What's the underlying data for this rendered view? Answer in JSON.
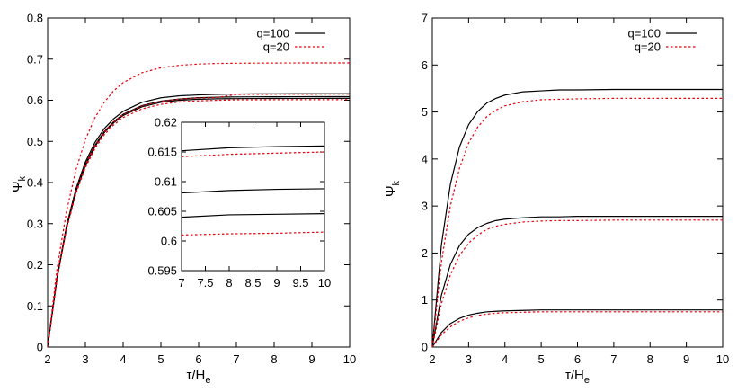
{
  "chart_data": [
    {
      "type": "line",
      "panel": "left",
      "title": "",
      "xlabel": "τ/H",
      "xlabel_sub": "e",
      "ylabel": "Ψ",
      "ylabel_sub": "k",
      "xlim": [
        2,
        10
      ],
      "ylim": [
        0,
        0.8
      ],
      "xticks": [
        2,
        3,
        4,
        5,
        6,
        7,
        8,
        9,
        10
      ],
      "yticks": [
        0,
        0.1,
        0.2,
        0.3,
        0.4,
        0.5,
        0.6,
        0.7,
        0.8
      ],
      "legend_position": "top-right",
      "legend": [
        {
          "label": "q=100",
          "color": "#000000",
          "dash": "solid"
        },
        {
          "label": "q=20",
          "color": "#e8000b",
          "dash": "dotted"
        }
      ],
      "series": [
        {
          "legend": "q=100",
          "color": "#000000",
          "dash": "solid",
          "x0": 2,
          "rate": 1.3,
          "x": [
            2.0,
            2.25,
            2.5,
            2.75,
            3.0,
            3.25,
            3.5,
            3.75,
            4.0,
            4.5,
            5.0,
            5.5,
            6.0,
            6.5,
            7.0,
            7.5,
            8.0,
            8.5,
            9.0,
            9.5,
            10.0
          ],
          "y": [
            0.0,
            0.171,
            0.295,
            0.385,
            0.45,
            0.497,
            0.531,
            0.555,
            0.573,
            0.595,
            0.606,
            0.611,
            0.613,
            0.6145,
            0.6152,
            0.6155,
            0.6157,
            0.6158,
            0.6159,
            0.616,
            0.616
          ]
        },
        {
          "color": "#000000",
          "dash": "solid",
          "x0": 2,
          "rate": 1.3,
          "x": [
            2.0,
            2.25,
            2.5,
            2.75,
            3.0,
            3.25,
            3.5,
            3.75,
            4.0,
            4.5,
            5.0,
            5.5,
            6.0,
            6.5,
            7.0,
            7.5,
            8.0,
            8.5,
            9.0,
            9.5,
            10.0
          ],
          "y": [
            0.0,
            0.168,
            0.291,
            0.38,
            0.444,
            0.49,
            0.524,
            0.548,
            0.566,
            0.587,
            0.598,
            0.603,
            0.6062,
            0.6075,
            0.6081,
            0.6083,
            0.6085,
            0.6086,
            0.6087,
            0.6088,
            0.6088
          ]
        },
        {
          "color": "#000000",
          "dash": "solid",
          "x0": 2,
          "rate": 1.3,
          "x": [
            2.0,
            2.25,
            2.5,
            2.75,
            3.0,
            3.25,
            3.5,
            3.75,
            4.0,
            4.5,
            5.0,
            5.5,
            6.0,
            6.5,
            7.0,
            7.5,
            8.0,
            8.5,
            9.0,
            9.5,
            10.0
          ],
          "y": [
            0.0,
            0.167,
            0.289,
            0.377,
            0.441,
            0.487,
            0.521,
            0.545,
            0.563,
            0.584,
            0.595,
            0.6,
            0.6025,
            0.6035,
            0.604,
            0.6042,
            0.6044,
            0.6045,
            0.6045,
            0.6046,
            0.6046
          ]
        },
        {
          "legend": "q=20",
          "color": "#e8000b",
          "dash": "dotted",
          "x0": 2,
          "rate": 1.3,
          "x": [
            2.0,
            2.25,
            2.5,
            2.75,
            3.0,
            3.25,
            3.5,
            3.75,
            4.0,
            4.5,
            5.0,
            5.5,
            6.0,
            6.5,
            7.0,
            7.5,
            8.0,
            8.5,
            9.0,
            9.5,
            10.0
          ],
          "y": [
            0.0,
            0.191,
            0.33,
            0.431,
            0.504,
            0.557,
            0.595,
            0.623,
            0.643,
            0.667,
            0.679,
            0.685,
            0.688,
            0.6895,
            0.69,
            0.6903,
            0.6905,
            0.6906,
            0.6907,
            0.6907,
            0.6907
          ]
        },
        {
          "color": "#e8000b",
          "dash": "dotted",
          "x0": 2,
          "rate": 1.3,
          "x": [
            2.0,
            2.25,
            2.5,
            2.75,
            3.0,
            3.25,
            3.5,
            3.75,
            4.0,
            4.5,
            5.0,
            5.5,
            6.0,
            6.5,
            7.0,
            7.5,
            8.0,
            8.5,
            9.0,
            9.5,
            10.0
          ],
          "y": [
            0.0,
            0.168,
            0.29,
            0.379,
            0.443,
            0.489,
            0.523,
            0.547,
            0.565,
            0.586,
            0.597,
            0.603,
            0.6055,
            0.607,
            0.6142,
            0.6144,
            0.6146,
            0.6147,
            0.6148,
            0.6149,
            0.615
          ]
        },
        {
          "color": "#e8000b",
          "dash": "dotted",
          "x0": 2,
          "rate": 1.3,
          "x": [
            2.0,
            2.25,
            2.5,
            2.75,
            3.0,
            3.25,
            3.5,
            3.75,
            4.0,
            4.5,
            5.0,
            5.5,
            6.0,
            6.5,
            7.0,
            7.5,
            8.0,
            8.5,
            9.0,
            9.5,
            10.0
          ],
          "y": [
            0.0,
            0.166,
            0.286,
            0.373,
            0.436,
            0.482,
            0.516,
            0.54,
            0.558,
            0.579,
            0.59,
            0.596,
            0.5985,
            0.5998,
            0.601,
            0.6011,
            0.6012,
            0.6013,
            0.6013,
            0.6014,
            0.6015
          ]
        }
      ],
      "inset": {
        "xlim": [
          7,
          10
        ],
        "ylim": [
          0.595,
          0.62
        ],
        "xticks": [
          7,
          7.5,
          8,
          8.5,
          9,
          9.5,
          10
        ],
        "yticks": [
          0.595,
          0.6,
          0.605,
          0.61,
          0.615,
          0.62
        ],
        "series": [
          {
            "color": "#000000",
            "dash": "solid",
            "x": [
              7,
              8,
              9,
              10
            ],
            "y": [
              0.6152,
              0.6157,
              0.6159,
              0.616
            ]
          },
          {
            "color": "#000000",
            "dash": "solid",
            "x": [
              7,
              8,
              9,
              10
            ],
            "y": [
              0.6081,
              0.6085,
              0.6087,
              0.6088
            ]
          },
          {
            "color": "#000000",
            "dash": "solid",
            "x": [
              7,
              8,
              9,
              10
            ],
            "y": [
              0.604,
              0.6044,
              0.6045,
              0.6046
            ]
          },
          {
            "color": "#e8000b",
            "dash": "dotted",
            "x": [
              7,
              8,
              9,
              10
            ],
            "y": [
              0.6142,
              0.6146,
              0.6148,
              0.615
            ]
          },
          {
            "color": "#e8000b",
            "dash": "dotted",
            "x": [
              7,
              8,
              9,
              10
            ],
            "y": [
              0.601,
              0.6012,
              0.6013,
              0.6015
            ]
          }
        ]
      }
    },
    {
      "type": "line",
      "panel": "right",
      "title": "",
      "xlabel": "τ/H",
      "xlabel_sub": "e",
      "ylabel": "Ψ",
      "ylabel_sub": "k",
      "xlim": [
        2,
        10
      ],
      "ylim": [
        0,
        7
      ],
      "xticks": [
        2,
        3,
        4,
        5,
        6,
        7,
        8,
        9,
        10
      ],
      "yticks": [
        0,
        1,
        2,
        3,
        4,
        5,
        6,
        7
      ],
      "legend_position": "top-right",
      "legend": [
        {
          "label": "q=100",
          "color": "#000000",
          "dash": "solid"
        },
        {
          "label": "q=20",
          "color": "#e8000b",
          "dash": "dotted"
        }
      ],
      "series": [
        {
          "legend": "q=100",
          "color": "#000000",
          "dash": "solid",
          "x": [
            2.0,
            2.25,
            2.5,
            2.75,
            3.0,
            3.25,
            3.5,
            3.75,
            4.0,
            4.5,
            5.0,
            5.5,
            6.0,
            7.0,
            8.0,
            9.0,
            10.0
          ],
          "y": [
            0.0,
            2.17,
            3.47,
            4.26,
            4.73,
            5.01,
            5.19,
            5.29,
            5.36,
            5.43,
            5.45,
            5.47,
            5.47,
            5.48,
            5.48,
            5.48,
            5.48
          ]
        },
        {
          "legend": "q=20",
          "color": "#e8000b",
          "dash": "dotted",
          "x": [
            2.0,
            2.25,
            2.5,
            2.75,
            3.0,
            3.25,
            3.5,
            3.75,
            4.0,
            4.5,
            5.0,
            5.5,
            6.0,
            7.0,
            8.0,
            9.0,
            10.0
          ],
          "y": [
            0.0,
            1.8,
            3.01,
            3.81,
            4.34,
            4.68,
            4.9,
            5.04,
            5.13,
            5.22,
            5.26,
            5.27,
            5.28,
            5.29,
            5.29,
            5.29,
            5.29
          ]
        },
        {
          "color": "#000000",
          "dash": "solid",
          "x": [
            2.0,
            2.25,
            2.5,
            2.75,
            3.0,
            3.25,
            3.5,
            3.75,
            4.0,
            4.5,
            5.0,
            5.5,
            6.0,
            7.0,
            8.0,
            9.0,
            10.0
          ],
          "y": [
            0.0,
            1.1,
            1.76,
            2.16,
            2.4,
            2.54,
            2.63,
            2.69,
            2.72,
            2.75,
            2.77,
            2.77,
            2.78,
            2.78,
            2.78,
            2.78,
            2.78
          ]
        },
        {
          "color": "#e8000b",
          "dash": "dotted",
          "x": [
            2.0,
            2.25,
            2.5,
            2.75,
            3.0,
            3.25,
            3.5,
            3.75,
            4.0,
            4.5,
            5.0,
            5.5,
            6.0,
            7.0,
            8.0,
            9.0,
            10.0
          ],
          "y": [
            0.0,
            0.92,
            1.54,
            1.95,
            2.21,
            2.38,
            2.5,
            2.57,
            2.61,
            2.66,
            2.68,
            2.69,
            2.69,
            2.7,
            2.7,
            2.7,
            2.7
          ]
        },
        {
          "color": "#000000",
          "dash": "solid",
          "x": [
            2.0,
            2.25,
            2.5,
            2.75,
            3.0,
            3.25,
            3.5,
            3.75,
            4.0,
            4.5,
            5.0,
            5.5,
            6.0,
            7.0,
            8.0,
            9.0,
            10.0
          ],
          "y": [
            0.0,
            0.31,
            0.5,
            0.61,
            0.68,
            0.72,
            0.75,
            0.76,
            0.77,
            0.78,
            0.79,
            0.79,
            0.79,
            0.79,
            0.79,
            0.79,
            0.79
          ]
        },
        {
          "color": "#e8000b",
          "dash": "dotted",
          "x": [
            2.0,
            2.25,
            2.5,
            2.75,
            3.0,
            3.25,
            3.5,
            3.75,
            4.0,
            4.5,
            5.0,
            5.5,
            6.0,
            7.0,
            8.0,
            9.0,
            10.0
          ],
          "y": [
            0.0,
            0.26,
            0.43,
            0.55,
            0.62,
            0.67,
            0.7,
            0.72,
            0.73,
            0.74,
            0.75,
            0.75,
            0.75,
            0.75,
            0.75,
            0.75,
            0.75
          ]
        }
      ]
    }
  ]
}
